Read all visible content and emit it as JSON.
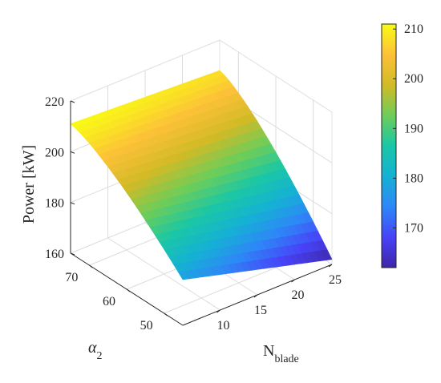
{
  "chart_data": {
    "type": "surface3d",
    "title": "",
    "zlabel": "Power [kW]",
    "xlabel_main": "N",
    "xlabel_sub": "blade",
    "ylabel_main": "α",
    "ylabel_sub": "2",
    "x_ticks": [
      10,
      15,
      20,
      25
    ],
    "y_ticks": [
      50,
      60,
      70
    ],
    "z_ticks": [
      160,
      180,
      200,
      220
    ],
    "xlim": [
      5,
      25
    ],
    "ylim": [
      45,
      75
    ],
    "zlim": [
      160,
      220
    ],
    "corners": {
      "N5_alpha75": 211,
      "N25_alpha75": 208,
      "N5_alpha45": 178,
      "N25_alpha45": 162
    },
    "colorbar": {
      "ticks": [
        170,
        180,
        190,
        200,
        210
      ],
      "range": [
        162,
        211
      ],
      "colormap": "parula"
    },
    "grid": true
  }
}
